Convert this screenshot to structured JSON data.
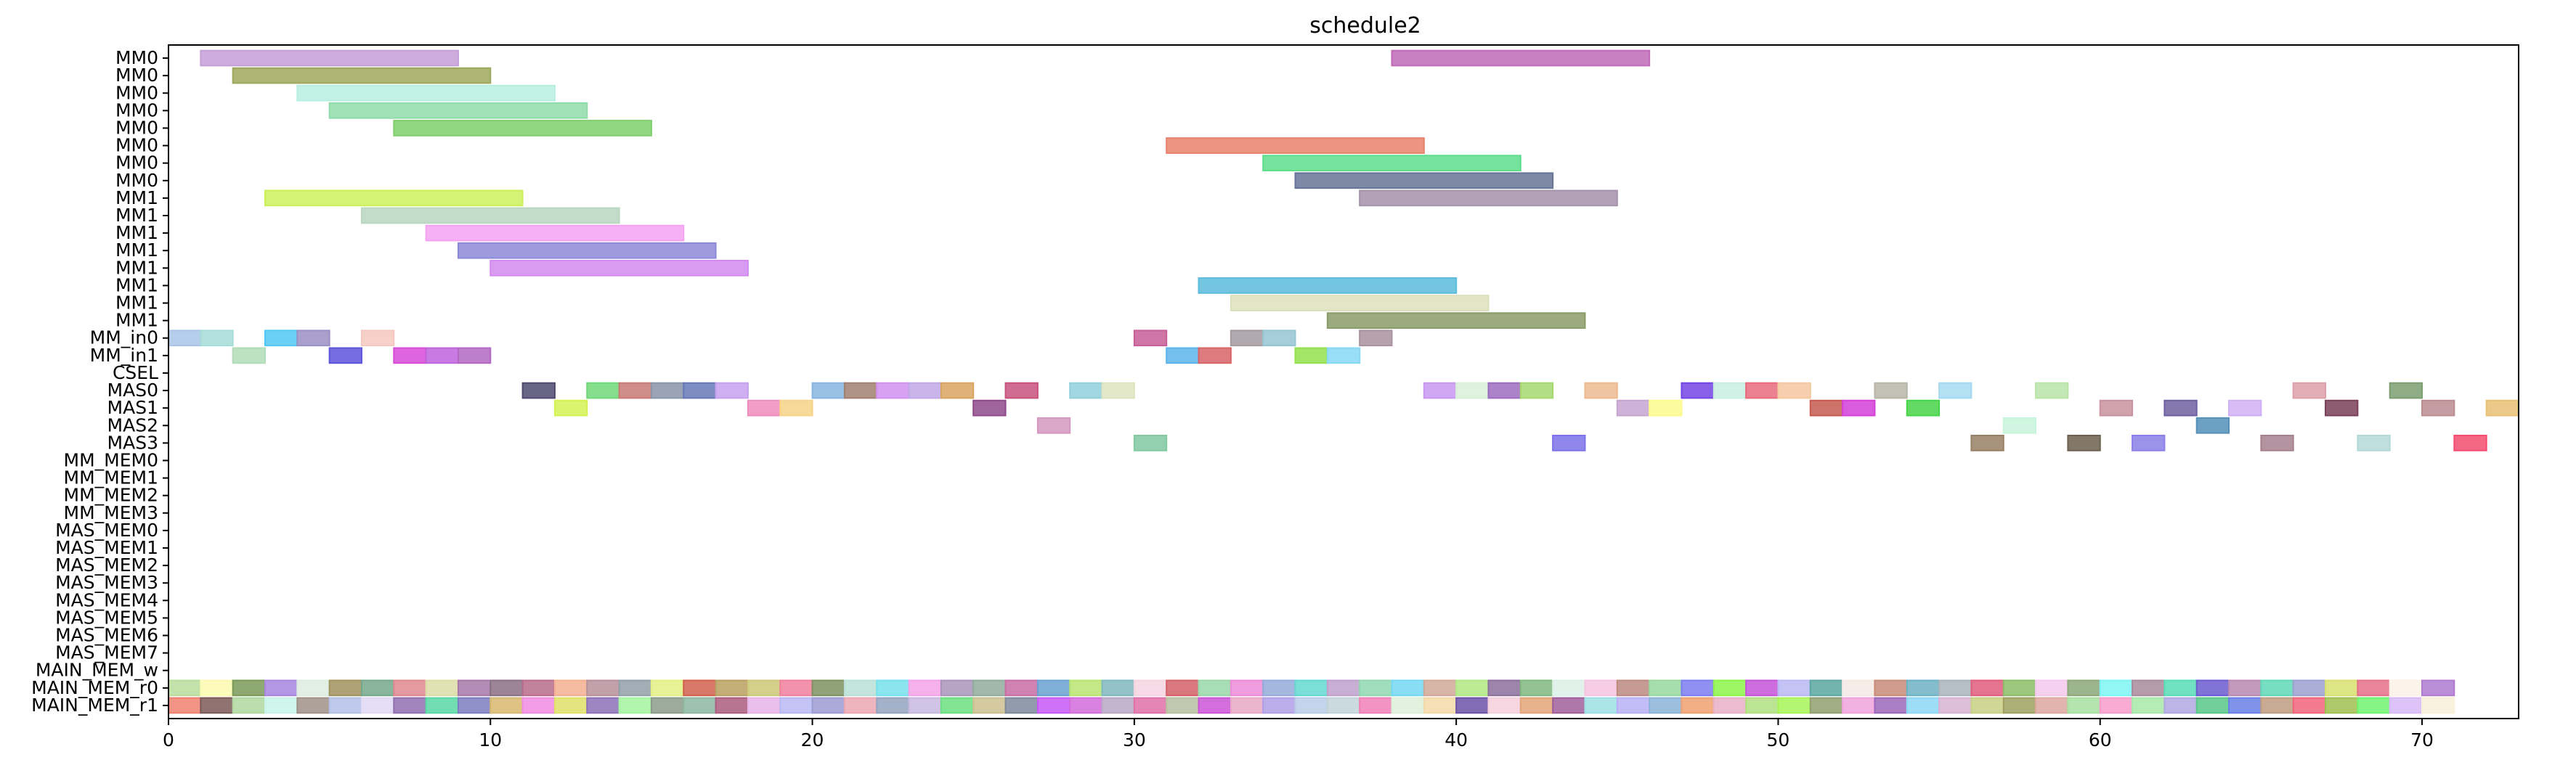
{
  "chart_data": {
    "type": "gantt",
    "title": "schedule2",
    "xlabel": "",
    "ylabel": "",
    "xlim": [
      0,
      73
    ],
    "xticks": [
      0,
      10,
      20,
      30,
      40,
      50,
      60,
      70
    ],
    "grid": false,
    "rows": [
      "MM0",
      "MM0",
      "MM0",
      "MM0",
      "MM0",
      "MM0",
      "MM0",
      "MM0",
      "MM1",
      "MM1",
      "MM1",
      "MM1",
      "MM1",
      "MM1",
      "MM1",
      "MM1",
      "MM_in0",
      "MM_in1",
      "CSEL",
      "MAS0",
      "MAS1",
      "MAS2",
      "MAS3",
      "MM_MEM0",
      "MM_MEM1",
      "MM_MEM2",
      "MM_MEM3",
      "MAS_MEM0",
      "MAS_MEM1",
      "MAS_MEM2",
      "MAS_MEM3",
      "MAS_MEM4",
      "MAS_MEM5",
      "MAS_MEM6",
      "MAS_MEM7",
      "MAIN_MEM_w",
      "MAIN_MEM_r0",
      "MAIN_MEM_r1"
    ],
    "tasks": [
      {
        "row": 0,
        "start": 1,
        "end": 9,
        "color": "#c59ed8"
      },
      {
        "row": 0,
        "start": 38,
        "end": 46,
        "color": "#c06ab8"
      },
      {
        "row": 1,
        "start": 2,
        "end": 10,
        "color": "#9ea85a"
      },
      {
        "row": 2,
        "start": 4,
        "end": 12,
        "color": "#b8eee0"
      },
      {
        "row": 3,
        "start": 5,
        "end": 13,
        "color": "#8fdca8"
      },
      {
        "row": 4,
        "start": 7,
        "end": 15,
        "color": "#80cf6c"
      },
      {
        "row": 5,
        "start": 31,
        "end": 39,
        "color": "#e8826c"
      },
      {
        "row": 6,
        "start": 34,
        "end": 42,
        "color": "#5ede8c"
      },
      {
        "row": 7,
        "start": 35,
        "end": 43,
        "color": "#667496"
      },
      {
        "row": 8,
        "start": 3,
        "end": 11,
        "color": "#ccf05a"
      },
      {
        "row": 8,
        "start": 37,
        "end": 45,
        "color": "#a592ab"
      },
      {
        "row": 9,
        "start": 6,
        "end": 14,
        "color": "#b8d6c0"
      },
      {
        "row": 10,
        "start": 8,
        "end": 16,
        "color": "#f4a2f2"
      },
      {
        "row": 11,
        "start": 9,
        "end": 17,
        "color": "#8c8ad8"
      },
      {
        "row": 12,
        "start": 10,
        "end": 18,
        "color": "#d28af0"
      },
      {
        "row": 13,
        "start": 32,
        "end": 40,
        "color": "#5cbcda"
      },
      {
        "row": 14,
        "start": 33,
        "end": 41,
        "color": "#dde0bc"
      },
      {
        "row": 15,
        "start": 36,
        "end": 44,
        "color": "#8a9c68"
      },
      {
        "row": 16,
        "start": 0,
        "end": 1,
        "color": "#a9c4e8"
      },
      {
        "row": 16,
        "start": 1,
        "end": 2,
        "color": "#a6dcd8"
      },
      {
        "row": 16,
        "start": 3,
        "end": 4,
        "color": "#52c8f4"
      },
      {
        "row": 16,
        "start": 4,
        "end": 5,
        "color": "#9a8fc4"
      },
      {
        "row": 16,
        "start": 6,
        "end": 7,
        "color": "#f4c8c0"
      },
      {
        "row": 16,
        "start": 30,
        "end": 31,
        "color": "#c75e98"
      },
      {
        "row": 16,
        "start": 33,
        "end": 34,
        "color": "#a59aa0"
      },
      {
        "row": 16,
        "start": 34,
        "end": 35,
        "color": "#96c6d4"
      },
      {
        "row": 16,
        "start": 37,
        "end": 38,
        "color": "#a8929e"
      },
      {
        "row": 17,
        "start": 2,
        "end": 3,
        "color": "#b0dcb8"
      },
      {
        "row": 17,
        "start": 5,
        "end": 6,
        "color": "#5d54dc"
      },
      {
        "row": 17,
        "start": 7,
        "end": 8,
        "color": "#d84ad8"
      },
      {
        "row": 17,
        "start": 8,
        "end": 9,
        "color": "#c064de"
      },
      {
        "row": 17,
        "start": 9,
        "end": 10,
        "color": "#b268c2"
      },
      {
        "row": 17,
        "start": 31,
        "end": 32,
        "color": "#5cb4ea"
      },
      {
        "row": 17,
        "start": 32,
        "end": 33,
        "color": "#d86468"
      },
      {
        "row": 17,
        "start": 35,
        "end": 36,
        "color": "#92e04c"
      },
      {
        "row": 17,
        "start": 36,
        "end": 37,
        "color": "#86d8f4"
      },
      {
        "row": 19,
        "start": 11,
        "end": 12,
        "color": "#4f4a6e"
      },
      {
        "row": 19,
        "start": 13,
        "end": 14,
        "color": "#6ed878"
      },
      {
        "row": 19,
        "start": 14,
        "end": 15,
        "color": "#c87a76"
      },
      {
        "row": 19,
        "start": 15,
        "end": 16,
        "color": "#8a94aa"
      },
      {
        "row": 19,
        "start": 16,
        "end": 17,
        "color": "#6678b8"
      },
      {
        "row": 19,
        "start": 17,
        "end": 18,
        "color": "#c8a0f0"
      },
      {
        "row": 19,
        "start": 20,
        "end": 21,
        "color": "#86b6e0"
      },
      {
        "row": 19,
        "start": 21,
        "end": 22,
        "color": "#a08070"
      },
      {
        "row": 19,
        "start": 22,
        "end": 23,
        "color": "#d290f0"
      },
      {
        "row": 19,
        "start": 23,
        "end": 24,
        "color": "#c0a8e6"
      },
      {
        "row": 19,
        "start": 24,
        "end": 25,
        "color": "#d8a460"
      },
      {
        "row": 19,
        "start": 26,
        "end": 27,
        "color": "#c8527c"
      },
      {
        "row": 19,
        "start": 28,
        "end": 29,
        "color": "#92d0dc"
      },
      {
        "row": 19,
        "start": 29,
        "end": 30,
        "color": "#dde4c0"
      },
      {
        "row": 19,
        "start": 39,
        "end": 40,
        "color": "#c898f0"
      },
      {
        "row": 19,
        "start": 40,
        "end": 41,
        "color": "#d8f0d8"
      },
      {
        "row": 19,
        "start": 41,
        "end": 42,
        "color": "#9d6cc0"
      },
      {
        "row": 19,
        "start": 42,
        "end": 43,
        "color": "#a6d870"
      },
      {
        "row": 19,
        "start": 44,
        "end": 45,
        "color": "#ecba90"
      },
      {
        "row": 19,
        "start": 47,
        "end": 48,
        "color": "#7444e4"
      },
      {
        "row": 19,
        "start": 48,
        "end": 49,
        "color": "#c8eee0"
      },
      {
        "row": 19,
        "start": 49,
        "end": 50,
        "color": "#e86a7c"
      },
      {
        "row": 19,
        "start": 50,
        "end": 51,
        "color": "#f4c8a0"
      },
      {
        "row": 19,
        "start": 53,
        "end": 54,
        "color": "#b8b6a8"
      },
      {
        "row": 19,
        "start": 55,
        "end": 56,
        "color": "#a6daf0"
      },
      {
        "row": 19,
        "start": 58,
        "end": 59,
        "color": "#b8e4a8"
      },
      {
        "row": 19,
        "start": 66,
        "end": 67,
        "color": "#dea0a8"
      },
      {
        "row": 19,
        "start": 69,
        "end": 70,
        "color": "#7a9e70"
      },
      {
        "row": 20,
        "start": 12,
        "end": 13,
        "color": "#d4f254"
      },
      {
        "row": 20,
        "start": 18,
        "end": 19,
        "color": "#f08cbc"
      },
      {
        "row": 20,
        "start": 19,
        "end": 20,
        "color": "#f6d488"
      },
      {
        "row": 20,
        "start": 25,
        "end": 26,
        "color": "#904a8c"
      },
      {
        "row": 20,
        "start": 45,
        "end": 46,
        "color": "#c6a4d0"
      },
      {
        "row": 20,
        "start": 46,
        "end": 47,
        "color": "#fcfa8c"
      },
      {
        "row": 20,
        "start": 51,
        "end": 52,
        "color": "#c65a50"
      },
      {
        "row": 20,
        "start": 52,
        "end": 53,
        "color": "#d440d8"
      },
      {
        "row": 20,
        "start": 54,
        "end": 55,
        "color": "#48d448"
      },
      {
        "row": 20,
        "start": 60,
        "end": 61,
        "color": "#c8929e"
      },
      {
        "row": 20,
        "start": 62,
        "end": 63,
        "color": "#6e60a0"
      },
      {
        "row": 20,
        "start": 64,
        "end": 65,
        "color": "#d0b0f4"
      },
      {
        "row": 20,
        "start": 67,
        "end": 68,
        "color": "#7a4058"
      },
      {
        "row": 20,
        "start": 70,
        "end": 71,
        "color": "#b88c90"
      },
      {
        "row": 20,
        "start": 72,
        "end": 73,
        "color": "#e8c074"
      },
      {
        "row": 21,
        "start": 27,
        "end": 28,
        "color": "#d498c0"
      },
      {
        "row": 21,
        "start": 57,
        "end": 58,
        "color": "#c8f4dc"
      },
      {
        "row": 21,
        "start": 63,
        "end": 64,
        "color": "#5490b8"
      },
      {
        "row": 22,
        "start": 30,
        "end": 31,
        "color": "#82c8a0"
      },
      {
        "row": 22,
        "start": 43,
        "end": 44,
        "color": "#7c72ea"
      },
      {
        "row": 22,
        "start": 56,
        "end": 57,
        "color": "#988064"
      },
      {
        "row": 22,
        "start": 59,
        "end": 60,
        "color": "#6c6050"
      },
      {
        "row": 22,
        "start": 61,
        "end": 62,
        "color": "#8a80e8"
      },
      {
        "row": 22,
        "start": 65,
        "end": 66,
        "color": "#a6808e"
      },
      {
        "row": 22,
        "start": 68,
        "end": 69,
        "color": "#b4d8d8"
      },
      {
        "row": 22,
        "start": 71,
        "end": 72,
        "color": "#f44c70"
      }
    ],
    "memory_rows": [
      {
        "row": 36,
        "start": 0,
        "colors": [
          "#b8dc9c",
          "#fcfab0",
          "#7a9a58",
          "#a886e0",
          "#dcece0",
          "#a0925e",
          "#74a88c",
          "#e08890",
          "#dcdca6",
          "#a878a8",
          "#8a7084",
          "#b86c8a",
          "#f4b090",
          "#b8909c",
          "#90a0a8",
          "#e0f084",
          "#d0604e",
          "#b8a060",
          "#ccc878",
          "#f0809c",
          "#7e9060",
          "#b8e0d8",
          "#76e0ec",
          "#f4a2e8",
          "#a894b8",
          "#90ac9c",
          "#c86ca4",
          "#68a0d0",
          "#b8e470",
          "#80b8c0",
          "#f4d4e0",
          "#d46068",
          "#98d8a8",
          "#ec8cd8",
          "#94aad8",
          "#64d8d0",
          "#c0a0cc",
          "#90d8b0",
          "#74d8f4",
          "#d0a898",
          "#b0e884",
          "#8c6e9c",
          "#80b880",
          "#dcf0e8",
          "#f4c4e0",
          "#bc8a80",
          "#98d8a0",
          "#7c7cf0",
          "#8cf448",
          "#c454d8",
          "#b8b8f4",
          "#5aa8a0",
          "#f4eae4",
          "#c88c78",
          "#6cb0c4",
          "#aab4bc",
          "#e05c7c",
          "#8cbc68",
          "#f4c8ec",
          "#8ca878",
          "#7cf4f4",
          "#a88a9c",
          "#58dcb8",
          "#6c5ad0",
          "#b888b0",
          "#60d8b8",
          "#9ca0d0",
          "#d8e070",
          "#e47088",
          "#fcf2e8",
          "#b07ad0"
        ]
      },
      {
        "row": 37,
        "start": 0,
        "colors": [
          "#ee8070",
          "#7c5a58",
          "#b0d8a0",
          "#c8f4e8",
          "#a09088",
          "#b4c0e8",
          "#e0d8f4",
          "#9070b0",
          "#58d8a4",
          "#7c7cc0",
          "#d8b870",
          "#f08ce0",
          "#e0e068",
          "#8c72b8",
          "#a4f4a0",
          "#8c9c8c",
          "#8cb8a0",
          "#ac5c80",
          "#e8b4e8",
          "#b8b8f4",
          "#9c9cd4",
          "#eca8b4",
          "#94a4c0",
          "#c8b8e0",
          "#6ce080",
          "#ccc090",
          "#7e8a9c",
          "#c858f8",
          "#d46cdc",
          "#b8a8c4",
          "#e070a8",
          "#b8c0a0",
          "#cc54d8",
          "#e8a8c8",
          "#b0a0e8",
          "#b8cce8",
          "#c2d4d8",
          "#f080b8",
          "#dcf0d8",
          "#f4d8a8",
          "#6c52a8",
          "#f4d0dc",
          "#e4a478",
          "#a0609c",
          "#9ce0e4",
          "#b8b0f4",
          "#8cb4d8",
          "#f0a070",
          "#e8b0c4",
          "#b0e080",
          "#a8f458",
          "#90a070",
          "#f0a4dc",
          "#9c68b8",
          "#8cd8f4",
          "#d8b4d4",
          "#c8d084",
          "#a0a060",
          "#dca8a0",
          "#a8e0a0",
          "#f89ccc",
          "#a8e8a8",
          "#b0a8e0",
          "#58c888",
          "#6a80e8",
          "#c09c80",
          "#f0647c",
          "#a0c050",
          "#70f470",
          "#d8b8f8",
          "#f8f0d8"
        ]
      }
    ]
  }
}
